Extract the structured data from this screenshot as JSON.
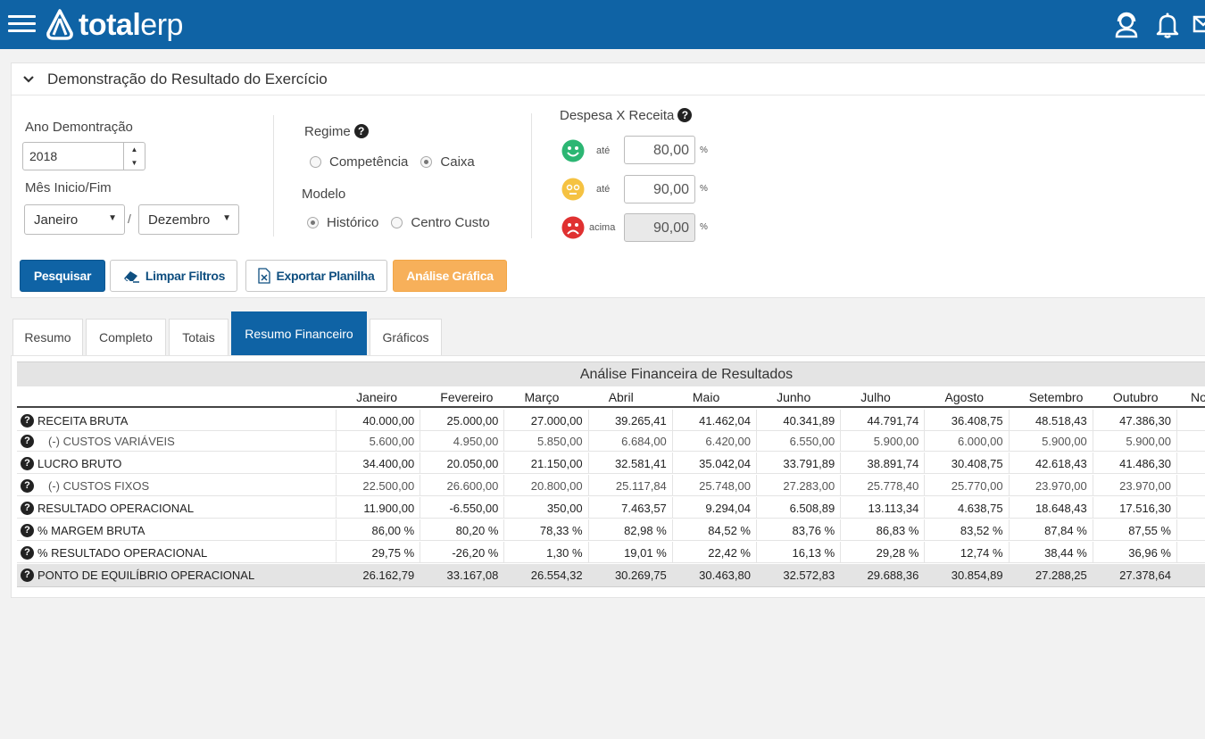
{
  "header": {
    "logo_bold": "total",
    "logo_light": "erp"
  },
  "panel": {
    "title": "Demonstração do Resultado do Exercício",
    "ano_label": "Ano Demontração",
    "ano_value": "2018",
    "mes_label": "Mês Inicio/Fim",
    "mes_inicio": "Janeiro",
    "mes_fim": "Dezembro",
    "slash": "/",
    "regime_label": "Regime",
    "regime_options": [
      "Competência",
      "Caixa"
    ],
    "regime_selected": "Caixa",
    "modelo_label": "Modelo",
    "modelo_options": [
      "Histórico",
      "Centro Custo"
    ],
    "modelo_selected": "Histórico",
    "despesa_label": "Despesa X Receita",
    "thresholds": [
      {
        "label": "até",
        "value": "80,00",
        "unit": "%",
        "color": "#2cb673"
      },
      {
        "label": "até",
        "value": "90,00",
        "unit": "%",
        "color": "#f5c242"
      },
      {
        "label": "acima",
        "value": "90,00",
        "unit": "%",
        "color": "#e03131"
      }
    ],
    "buttons": {
      "pesquisar": "Pesquisar",
      "limpar": "Limpar Filtros",
      "exportar": "Exportar Planilha",
      "analise": "Análise Gráfica"
    }
  },
  "tabs": [
    "Resumo",
    "Completo",
    "Totais",
    "Resumo Financeiro",
    "Gráficos"
  ],
  "report": {
    "title": "Análise Financeira de Resultados",
    "months": [
      "Janeiro",
      "Fevereiro",
      "Março",
      "Abril",
      "Maio",
      "Junho",
      "Julho",
      "Agosto",
      "Setembro",
      "Outubro",
      "No"
    ],
    "rows": [
      {
        "label": "RECEITA BRUTA",
        "sub": false,
        "values": [
          "40.000,00",
          "25.000,00",
          "27.000,00",
          "39.265,41",
          "41.462,04",
          "40.341,89",
          "44.791,74",
          "36.408,75",
          "48.518,43",
          "47.386,30"
        ]
      },
      {
        "label": "(-) CUSTOS VARIÁVEIS",
        "sub": true,
        "values": [
          "5.600,00",
          "4.950,00",
          "5.850,00",
          "6.684,00",
          "6.420,00",
          "6.550,00",
          "5.900,00",
          "6.000,00",
          "5.900,00",
          "5.900,00"
        ]
      },
      {
        "label": "LUCRO BRUTO",
        "sub": false,
        "values": [
          "34.400,00",
          "20.050,00",
          "21.150,00",
          "32.581,41",
          "35.042,04",
          "33.791,89",
          "38.891,74",
          "30.408,75",
          "42.618,43",
          "41.486,30"
        ]
      },
      {
        "label": "(-) CUSTOS FIXOS",
        "sub": true,
        "values": [
          "22.500,00",
          "26.600,00",
          "20.800,00",
          "25.117,84",
          "25.748,00",
          "27.283,00",
          "25.778,40",
          "25.770,00",
          "23.970,00",
          "23.970,00"
        ]
      },
      {
        "label": "RESULTADO OPERACIONAL",
        "sub": false,
        "values": [
          "11.900,00",
          "-6.550,00",
          "350,00",
          "7.463,57",
          "9.294,04",
          "6.508,89",
          "13.113,34",
          "4.638,75",
          "18.648,43",
          "17.516,30"
        ]
      },
      {
        "label": "% MARGEM BRUTA",
        "sub": false,
        "values": [
          "86,00 %",
          "80,20 %",
          "78,33 %",
          "82,98 %",
          "84,52 %",
          "83,76 %",
          "86,83 %",
          "83,52 %",
          "87,84 %",
          "87,55 %"
        ]
      },
      {
        "label": "% RESULTADO OPERACIONAL",
        "sub": false,
        "values": [
          "29,75 %",
          "-26,20 %",
          "1,30 %",
          "19,01 %",
          "22,42 %",
          "16,13 %",
          "29,28 %",
          "12,74 %",
          "38,44 %",
          "36,96 %"
        ]
      },
      {
        "label": "PONTO DE EQUILÍBRIO OPERACIONAL",
        "sub": false,
        "values": [
          "26.162,79",
          "33.167,08",
          "26.554,32",
          "30.269,75",
          "30.463,80",
          "32.572,83",
          "29.688,36",
          "30.854,89",
          "27.288,25",
          "27.378,64"
        ]
      }
    ]
  }
}
